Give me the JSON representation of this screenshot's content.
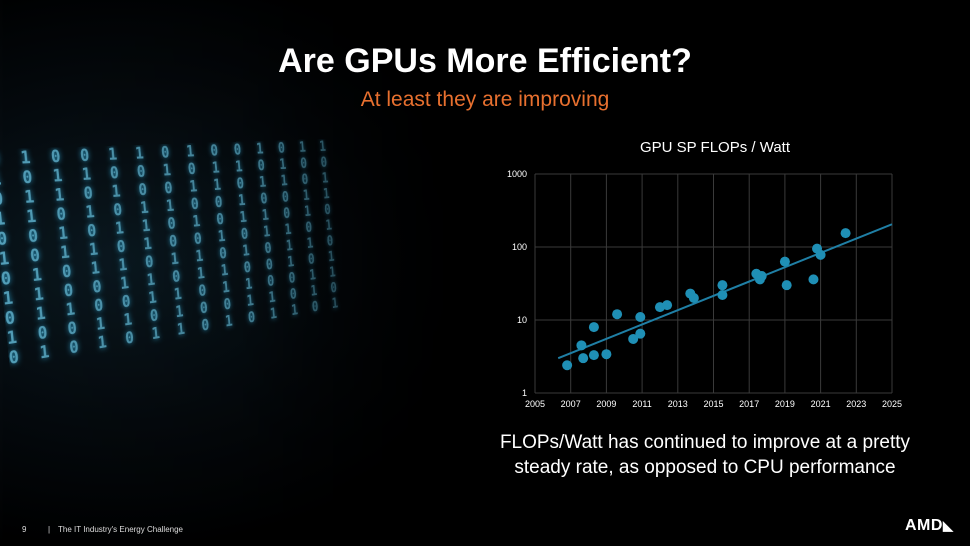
{
  "slide": {
    "title": "Are GPUs More Efficient?",
    "subtitle": "At least they are improving",
    "caption": "FLOPs/Watt has continued to improve at a pretty steady rate, as opposed to CPU performance"
  },
  "footer": {
    "page_number": "9",
    "separator": "|",
    "text": "The IT Industry's Energy Challenge",
    "logo_text": "AMD"
  },
  "colors": {
    "point": "#1f8fb5",
    "trendline": "#1f7fa5",
    "grid": "#3a3a3a",
    "accent": "#e8702f"
  },
  "chart_data": {
    "type": "scatter",
    "title": "GPU SP FLOPs / Watt",
    "xlabel": "",
    "ylabel": "",
    "y_scale": "log",
    "xlim": [
      2005,
      2025
    ],
    "ylim": [
      1,
      1000
    ],
    "x_ticks": [
      "2005",
      "2007",
      "2009",
      "2011",
      "2013",
      "2015",
      "2017",
      "2019",
      "2021",
      "2023",
      "2025"
    ],
    "y_ticks": [
      "1",
      "10",
      "100",
      "1000"
    ],
    "grid": true,
    "series": [
      {
        "points": [
          [
            2006.8,
            2.4
          ],
          [
            2007.6,
            4.5
          ],
          [
            2007.7,
            3.0
          ],
          [
            2008.3,
            8.0
          ],
          [
            2008.3,
            3.3
          ],
          [
            2009.0,
            3.4
          ],
          [
            2009.6,
            12.0
          ],
          [
            2010.5,
            5.5
          ],
          [
            2010.9,
            6.5
          ],
          [
            2010.9,
            11.0
          ],
          [
            2012.0,
            15.0
          ],
          [
            2012.4,
            16.0
          ],
          [
            2013.7,
            23.0
          ],
          [
            2013.9,
            20.0
          ],
          [
            2015.5,
            30.0
          ],
          [
            2015.5,
            22.0
          ],
          [
            2017.4,
            43.0
          ],
          [
            2017.6,
            36.0
          ],
          [
            2017.7,
            40.0
          ],
          [
            2019.0,
            63.0
          ],
          [
            2019.1,
            30.0
          ],
          [
            2020.6,
            36.0
          ],
          [
            2020.8,
            95.0
          ],
          [
            2021.0,
            78.0
          ],
          [
            2022.4,
            155.0
          ]
        ]
      }
    ],
    "trendline": [
      [
        2006.3,
        3.0
      ],
      [
        2025,
        205
      ]
    ]
  }
}
